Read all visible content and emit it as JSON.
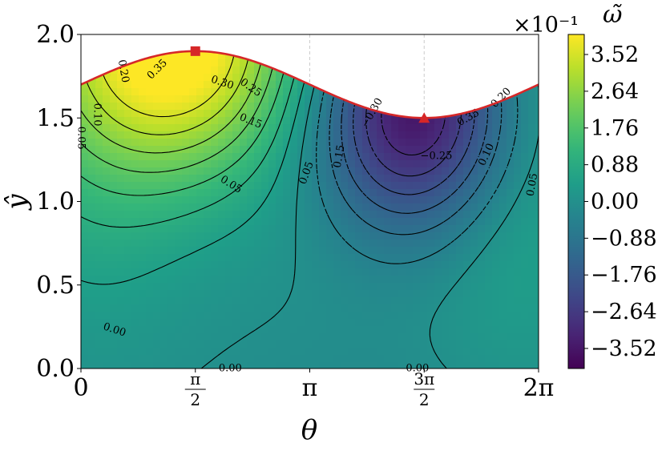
{
  "chart_data": {
    "type": "heatmap",
    "xlabel": "θ",
    "ylabel": "ŷ",
    "xlim": [
      0,
      6.2832
    ],
    "ylim": [
      0.0,
      2.0
    ],
    "x_ticks": [
      {
        "value": 0,
        "label": "0"
      },
      {
        "value": 1.5708,
        "label": "π/2",
        "num": "π",
        "den": "2"
      },
      {
        "value": 3.1416,
        "label": "π"
      },
      {
        "value": 4.7124,
        "label": "3π/2",
        "num": "3π",
        "den": "2"
      },
      {
        "value": 6.2832,
        "label": "2π"
      }
    ],
    "y_ticks": [
      {
        "value": 0.0,
        "label": "0.0"
      },
      {
        "value": 0.5,
        "label": "0.5"
      },
      {
        "value": 1.0,
        "label": "1.0"
      },
      {
        "value": 1.5,
        "label": "1.5"
      },
      {
        "value": 2.0,
        "label": "2.0"
      }
    ],
    "colorbar": {
      "label": "ω̃",
      "multiplier": "×10⁻¹",
      "range": [
        -4.0,
        4.0
      ],
      "ticks": [
        "3.52",
        "2.64",
        "1.76",
        "0.88",
        "0.00",
        "−0.88",
        "−1.76",
        "−2.64",
        "−3.52"
      ],
      "tick_values": [
        3.52,
        2.64,
        1.76,
        0.88,
        0.0,
        -0.88,
        -1.76,
        -2.64,
        -3.52
      ],
      "colormap": "viridis"
    },
    "boundary": {
      "description": "upper wall",
      "mean": 1.7,
      "amplitude": 0.2,
      "color": "#d62728"
    },
    "markers": [
      {
        "shape": "square",
        "x": 1.5708,
        "y": 1.9,
        "color": "#d62728"
      },
      {
        "shape": "triangle",
        "x": 4.7124,
        "y": 1.5,
        "color": "#d62728"
      }
    ],
    "guide_lines_x": [
      3.1416,
      4.7124
    ],
    "contour_labels": [
      {
        "text": "0.35",
        "x": 1.05,
        "y": 1.79,
        "rot": -45
      },
      {
        "text": "0.30",
        "x": 1.94,
        "y": 1.71,
        "rot": 18
      },
      {
        "text": "0.25",
        "x": 2.33,
        "y": 1.68,
        "rot": 35
      },
      {
        "text": "0.20",
        "x": 0.58,
        "y": 1.78,
        "rot": 80
      },
      {
        "text": "0.15",
        "x": 2.33,
        "y": 1.48,
        "rot": 22
      },
      {
        "text": "0.10",
        "x": 0.22,
        "y": 1.52,
        "rot": 90
      },
      {
        "text": "0.05",
        "x": 2.06,
        "y": 1.1,
        "rot": 32
      },
      {
        "text": "0.05",
        "x": 0.0,
        "y": 1.38,
        "rot": 90
      },
      {
        "text": "0.00",
        "x": 0.46,
        "y": 0.23,
        "rot": 18
      },
      {
        "text": "0.00",
        "x": 2.05,
        "y": 0.0,
        "rot": 0
      },
      {
        "text": "0.00",
        "x": 4.62,
        "y": 0.0,
        "rot": 0
      },
      {
        "text": "−0.30",
        "x": 4.0,
        "y": 1.53,
        "rot": -60
      },
      {
        "text": "−0.25",
        "x": 4.88,
        "y": 1.27,
        "rot": 0
      },
      {
        "text": "0.35",
        "x": 5.32,
        "y": 1.5,
        "rot": -30
      },
      {
        "text": "0.20",
        "x": 5.77,
        "y": 1.62,
        "rot": -45
      },
      {
        "text": "0.15",
        "x": 3.55,
        "y": 1.27,
        "rot": -80
      },
      {
        "text": "0.10",
        "x": 5.57,
        "y": 1.28,
        "rot": -65
      },
      {
        "text": "0.05",
        "x": 3.1,
        "y": 1.17,
        "rot": -70
      },
      {
        "text": "0.05",
        "x": 6.2,
        "y": 1.1,
        "rot": -80
      }
    ]
  }
}
